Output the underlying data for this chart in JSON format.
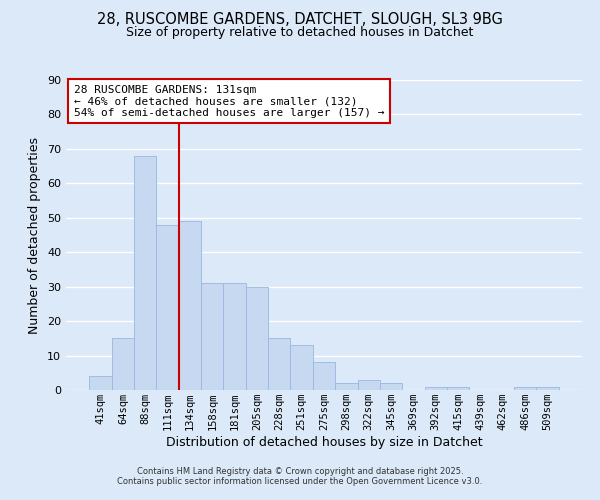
{
  "title_line1": "28, RUSCOMBE GARDENS, DATCHET, SLOUGH, SL3 9BG",
  "title_line2": "Size of property relative to detached houses in Datchet",
  "xlabel": "Distribution of detached houses by size in Datchet",
  "ylabel": "Number of detached properties",
  "bar_labels": [
    "41sqm",
    "64sqm",
    "88sqm",
    "111sqm",
    "134sqm",
    "158sqm",
    "181sqm",
    "205sqm",
    "228sqm",
    "251sqm",
    "275sqm",
    "298sqm",
    "322sqm",
    "345sqm",
    "369sqm",
    "392sqm",
    "415sqm",
    "439sqm",
    "462sqm",
    "486sqm",
    "509sqm"
  ],
  "bar_values": [
    4,
    15,
    68,
    48,
    49,
    31,
    31,
    30,
    15,
    13,
    8,
    2,
    3,
    2,
    0,
    1,
    1,
    0,
    0,
    1,
    1
  ],
  "bar_color": "#c6d9f1",
  "bar_edge_color": "#9ab7e0",
  "reference_line_idx": 4,
  "reference_line_color": "#cc0000",
  "ylim": [
    0,
    90
  ],
  "yticks": [
    0,
    10,
    20,
    30,
    40,
    50,
    60,
    70,
    80,
    90
  ],
  "annotation_title": "28 RUSCOMBE GARDENS: 131sqm",
  "annotation_line1": "← 46% of detached houses are smaller (132)",
  "annotation_line2": "54% of semi-detached houses are larger (157) →",
  "annotation_box_color": "#ffffff",
  "annotation_box_edge": "#cc0000",
  "footer_line1": "Contains HM Land Registry data © Crown copyright and database right 2025.",
  "footer_line2": "Contains public sector information licensed under the Open Government Licence v3.0.",
  "background_color": "#dce9f8",
  "plot_bg_color": "#dce9f8",
  "grid_color": "#ffffff"
}
